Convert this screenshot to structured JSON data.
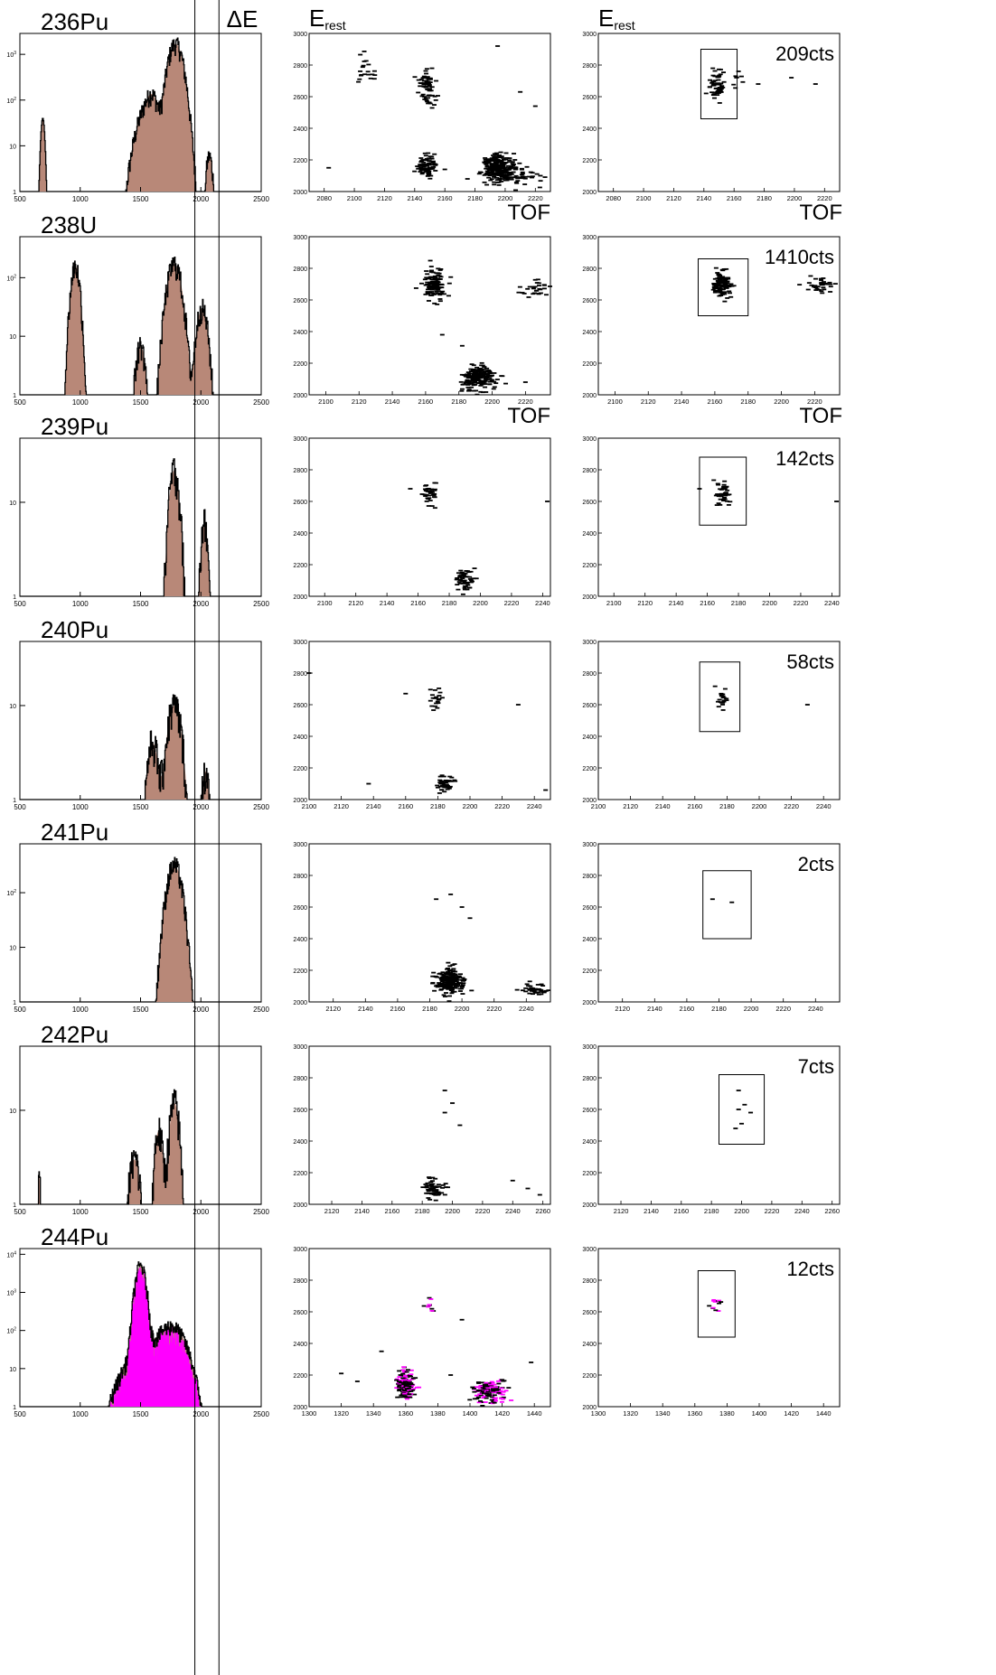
{
  "figure": {
    "col2_ylabel": "E",
    "col2_ylabel_sub": "rest",
    "col3_ylabel": "E",
    "col3_ylabel_sub": "rest",
    "tof_label": "TOF",
    "delta_e_label": "ΔE",
    "delta_e_lines": [
      1950,
      2150
    ]
  },
  "colors": {
    "fill": "#b88878",
    "magenta": "#ff00ff",
    "ink": "#000000"
  },
  "chart_data": [
    {
      "isotope": "236Pu",
      "spectrum": {
        "type": "area",
        "xlim": [
          500,
          2500
        ],
        "log_y": true,
        "ymax": 2500,
        "peaks": [
          [
            690,
            40,
            12
          ],
          [
            1550,
            60,
            60
          ],
          [
            1600,
            90,
            40
          ],
          [
            1790,
            1700,
            45
          ],
          [
            2070,
            6,
            20
          ]
        ],
        "noise": [
          1330,
          2100
        ],
        "xticks": [
          500,
          1000,
          1500,
          2000,
          2500
        ],
        "yticks": [
          1,
          10,
          100,
          1000
        ]
      },
      "xlim": [
        2070,
        2230
      ],
      "xticks": [
        2080,
        2100,
        2120,
        2140,
        2160,
        2180,
        2200,
        2220
      ],
      "ylim": [
        2000,
        3000
      ],
      "yticks": [
        2000,
        2200,
        2400,
        2600,
        2800,
        3000
      ],
      "clusters": [
        [
          2108,
          2760,
          6,
          80,
          20
        ],
        [
          2148,
          2670,
          5,
          85,
          70
        ],
        [
          2148,
          2160,
          6,
          60,
          80
        ],
        [
          2195,
          2150,
          9,
          70,
          260
        ],
        [
          2210,
          2100,
          14,
          60,
          40
        ]
      ],
      "scatter": [
        [
          2083,
          2150
        ],
        [
          2160,
          2140
        ],
        [
          2175,
          2080
        ],
        [
          2210,
          2630
        ],
        [
          2220,
          2540
        ],
        [
          2195,
          2920
        ]
      ],
      "gate": {
        "x": [
          2138,
          2162
        ],
        "y": [
          2460,
          2900
        ]
      },
      "gated": [
        [
          2149,
          2680,
          4,
          70,
          70
        ],
        [
          2162,
          2720,
          3,
          50,
          8
        ]
      ],
      "gated_scatter": [
        [
          2176,
          2680
        ],
        [
          2198,
          2720
        ],
        [
          2214,
          2680
        ]
      ],
      "count": "209cts",
      "tof_under": true
    },
    {
      "isotope": "238U",
      "spectrum": {
        "type": "area",
        "xlim": [
          500,
          2500
        ],
        "log_y": true,
        "ymax": 450,
        "peaks": [
          [
            960,
            160,
            28
          ],
          [
            1500,
            7,
            30
          ],
          [
            1780,
            170,
            45
          ],
          [
            2010,
            30,
            35
          ]
        ],
        "noise": [
          500,
          2100
        ],
        "xticks": [
          500,
          1000,
          1500,
          2000,
          2500
        ],
        "yticks": [
          1,
          10,
          100
        ]
      },
      "xlim": [
        2090,
        2235
      ],
      "xticks": [
        2100,
        2120,
        2140,
        2160,
        2180,
        2200,
        2220
      ],
      "ylim": [
        2000,
        3000
      ],
      "yticks": [
        2000,
        2200,
        2400,
        2600,
        2800,
        3000
      ],
      "clusters": [
        [
          2165,
          2700,
          6,
          80,
          120
        ],
        [
          2192,
          2110,
          9,
          70,
          200
        ],
        [
          2226,
          2680,
          8,
          60,
          30
        ]
      ],
      "scatter": [
        [
          2170,
          2380
        ],
        [
          2182,
          2310
        ],
        [
          2220,
          2080
        ]
      ],
      "gate": {
        "x": [
          2150,
          2180
        ],
        "y": [
          2500,
          2860
        ]
      },
      "gated": [
        [
          2164,
          2700,
          5,
          70,
          120
        ],
        [
          2224,
          2690,
          8,
          50,
          35
        ]
      ],
      "gated_scatter": [],
      "count": "1410cts",
      "tof_under": true
    },
    {
      "isotope": "239Pu",
      "spectrum": {
        "type": "area",
        "xlim": [
          500,
          2500
        ],
        "log_y": true,
        "ymax": 45,
        "peaks": [
          [
            1780,
            22,
            35
          ],
          [
            2030,
            6,
            25
          ]
        ],
        "noise": [
          1300,
          2050
        ],
        "xticks": [
          500,
          1000,
          1500,
          2000,
          2500
        ],
        "yticks": [
          1,
          10
        ]
      },
      "xlim": [
        2090,
        2245
      ],
      "xticks": [
        2100,
        2120,
        2140,
        2160,
        2180,
        2200,
        2220,
        2240
      ],
      "ylim": [
        2000,
        3000
      ],
      "yticks": [
        2000,
        2200,
        2400,
        2600,
        2800,
        3000
      ],
      "clusters": [
        [
          2168,
          2650,
          4,
          60,
          40
        ],
        [
          2190,
          2110,
          5,
          60,
          60
        ]
      ],
      "scatter": [
        [
          2155,
          2680
        ],
        [
          2243,
          2600
        ]
      ],
      "gate": {
        "x": [
          2155,
          2185
        ],
        "y": [
          2450,
          2880
        ]
      },
      "gated": [
        [
          2170,
          2650,
          5,
          65,
          40
        ]
      ],
      "gated_scatter": [
        [
          2155,
          2680
        ],
        [
          2243,
          2600
        ]
      ],
      "count": "142cts",
      "tof_under": false
    },
    {
      "isotope": "240Pu",
      "spectrum": {
        "type": "area",
        "xlim": [
          500,
          2500
        ],
        "log_y": true,
        "ymax": 45,
        "peaks": [
          [
            1780,
            10,
            50
          ],
          [
            1600,
            4,
            40
          ],
          [
            2040,
            2,
            30
          ]
        ],
        "noise": [
          1350,
          2100
        ],
        "xticks": [
          500,
          1000,
          1500,
          2000,
          2500
        ],
        "yticks": [
          1,
          10
        ]
      },
      "xlim": [
        2100,
        2250
      ],
      "xticks": [
        2100,
        2120,
        2140,
        2160,
        2180,
        2200,
        2220,
        2240
      ],
      "ylim": [
        2000,
        3000
      ],
      "yticks": [
        2000,
        2200,
        2400,
        2600,
        2800,
        3000
      ],
      "clusters": [
        [
          2178,
          2650,
          4,
          70,
          20
        ],
        [
          2185,
          2100,
          5,
          50,
          40
        ]
      ],
      "scatter": [
        [
          2100,
          2800
        ],
        [
          2137,
          2100
        ],
        [
          2160,
          2670
        ],
        [
          2230,
          2600
        ],
        [
          2247,
          2060
        ]
      ],
      "gate": {
        "x": [
          2163,
          2188
        ],
        "y": [
          2430,
          2870
        ]
      },
      "gated": [
        [
          2177,
          2650,
          4,
          70,
          22
        ]
      ],
      "gated_scatter": [
        [
          2230,
          2600
        ]
      ],
      "count": "58cts",
      "tof_under": false
    },
    {
      "isotope": "241Pu",
      "spectrum": {
        "type": "area",
        "xlim": [
          500,
          2500
        ],
        "log_y": true,
        "ymax": 700,
        "peaks": [
          [
            1780,
            320,
            45
          ]
        ],
        "noise": [
          500,
          2000
        ],
        "xticks": [
          500,
          1000,
          1500,
          2000,
          2500
        ],
        "yticks": [
          1,
          10,
          100
        ]
      },
      "xlim": [
        2105,
        2255
      ],
      "xticks": [
        2120,
        2140,
        2160,
        2180,
        2200,
        2220,
        2240
      ],
      "ylim": [
        2000,
        3000
      ],
      "yticks": [
        2000,
        2200,
        2400,
        2600,
        2800,
        3000
      ],
      "clusters": [
        [
          2193,
          2130,
          7,
          70,
          200
        ],
        [
          2245,
          2080,
          8,
          40,
          40
        ]
      ],
      "scatter": [
        [
          2184,
          2650
        ],
        [
          2193,
          2680
        ],
        [
          2200,
          2600
        ],
        [
          2205,
          2530
        ]
      ],
      "gate": {
        "x": [
          2170,
          2200
        ],
        "y": [
          2400,
          2830
        ]
      },
      "gated": [],
      "gated_scatter": [
        [
          2176,
          2650
        ],
        [
          2188,
          2630
        ]
      ],
      "count": "2cts",
      "tof_under": false
    },
    {
      "isotope": "242Pu",
      "spectrum": {
        "type": "area",
        "xlim": [
          500,
          2500
        ],
        "log_y": true,
        "ymax": 45,
        "peaks": [
          [
            1780,
            12,
            35
          ],
          [
            1650,
            6,
            30
          ],
          [
            1450,
            3,
            40
          ],
          [
            660,
            2,
            10
          ]
        ],
        "noise": [
          640,
          2050
        ],
        "xticks": [
          500,
          1000,
          1500,
          2000,
          2500
        ],
        "yticks": [
          1,
          10
        ]
      },
      "xlim": [
        2105,
        2265
      ],
      "xticks": [
        2120,
        2140,
        2160,
        2180,
        2200,
        2220,
        2240,
        2260
      ],
      "ylim": [
        2000,
        3000
      ],
      "yticks": [
        2000,
        2200,
        2400,
        2600,
        2800,
        3000
      ],
      "clusters": [
        [
          2188,
          2100,
          6,
          70,
          60
        ]
      ],
      "scatter": [
        [
          2195,
          2720
        ],
        [
          2200,
          2640
        ],
        [
          2195,
          2580
        ],
        [
          2205,
          2500
        ],
        [
          2240,
          2150
        ],
        [
          2250,
          2100
        ],
        [
          2258,
          2060
        ]
      ],
      "gate": {
        "x": [
          2185,
          2215
        ],
        "y": [
          2380,
          2820
        ]
      },
      "gated": [],
      "gated_scatter": [
        [
          2198,
          2720
        ],
        [
          2202,
          2630
        ],
        [
          2198,
          2600
        ],
        [
          2206,
          2580
        ],
        [
          2200,
          2510
        ],
        [
          2196,
          2480
        ]
      ],
      "count": "7cts",
      "tof_under": false
    },
    {
      "isotope": "244Pu",
      "spectrum": {
        "type": "area",
        "xlim": [
          500,
          2500
        ],
        "log_y": true,
        "ymax": 12000,
        "peaks": [
          [
            1500,
            5000,
            30
          ],
          [
            1760,
            120,
            80
          ],
          [
            1560,
            40,
            120
          ]
        ],
        "noise": [
          500,
          2500
        ],
        "magenta": true,
        "xticks": [
          500,
          1000,
          1500,
          2000,
          2500
        ],
        "yticks": [
          1,
          10,
          100,
          1000,
          10000
        ]
      },
      "xlim": [
        1300,
        1450
      ],
      "xticks": [
        1300,
        1320,
        1340,
        1360,
        1380,
        1400,
        1420,
        1440
      ],
      "ylim": [
        2000,
        3000
      ],
      "yticks": [
        2000,
        2200,
        2400,
        2600,
        2800,
        3000
      ],
      "clusters": [
        [
          1360,
          2140,
          5,
          70,
          160
        ],
        [
          1412,
          2100,
          8,
          60,
          140
        ],
        [
          1375,
          2650,
          3,
          40,
          10
        ]
      ],
      "scatter": [
        [
          1320,
          2210
        ],
        [
          1330,
          2160
        ],
        [
          1345,
          2350
        ],
        [
          1388,
          2200
        ],
        [
          1395,
          2550
        ],
        [
          1420,
          2170
        ],
        [
          1438,
          2280
        ]
      ],
      "gate": {
        "x": [
          1362,
          1385
        ],
        "y": [
          2440,
          2860
        ]
      },
      "gated": [
        [
          1372,
          2650,
          3,
          50,
          12
        ]
      ],
      "gated_scatter": [],
      "count": "12cts",
      "tof_under": false,
      "magenta": true
    }
  ]
}
